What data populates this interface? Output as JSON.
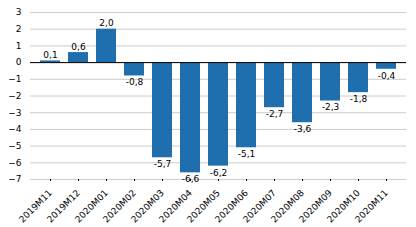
{
  "chart_data": {
    "type": "bar",
    "categories": [
      "2019M11",
      "2019M12",
      "2020M01",
      "2020M02",
      "2020M03",
      "2020M04",
      "2020M05",
      "2020M06",
      "2020M07",
      "2020M08",
      "2020M09",
      "2020M10",
      "2020M11"
    ],
    "values": [
      0.1,
      0.6,
      2.0,
      -0.8,
      -5.7,
      -6.6,
      -6.2,
      -5.1,
      -2.7,
      -3.6,
      -2.3,
      -1.8,
      -0.4
    ],
    "value_labels": [
      "0,1",
      "0,6",
      "2,0",
      "-0,8",
      "-5,7",
      "-6,6",
      "-6,2",
      "-5,1",
      "-2,7",
      "-3,6",
      "-2,3",
      "-1,8",
      "-0,4"
    ],
    "color": "#1f6faf",
    "ylim": [
      -7,
      3
    ],
    "yticks": [
      -7,
      -6,
      -5,
      -4,
      -3,
      -2,
      -1,
      0,
      1,
      2,
      3
    ],
    "grid": true,
    "data_labels": true
  }
}
